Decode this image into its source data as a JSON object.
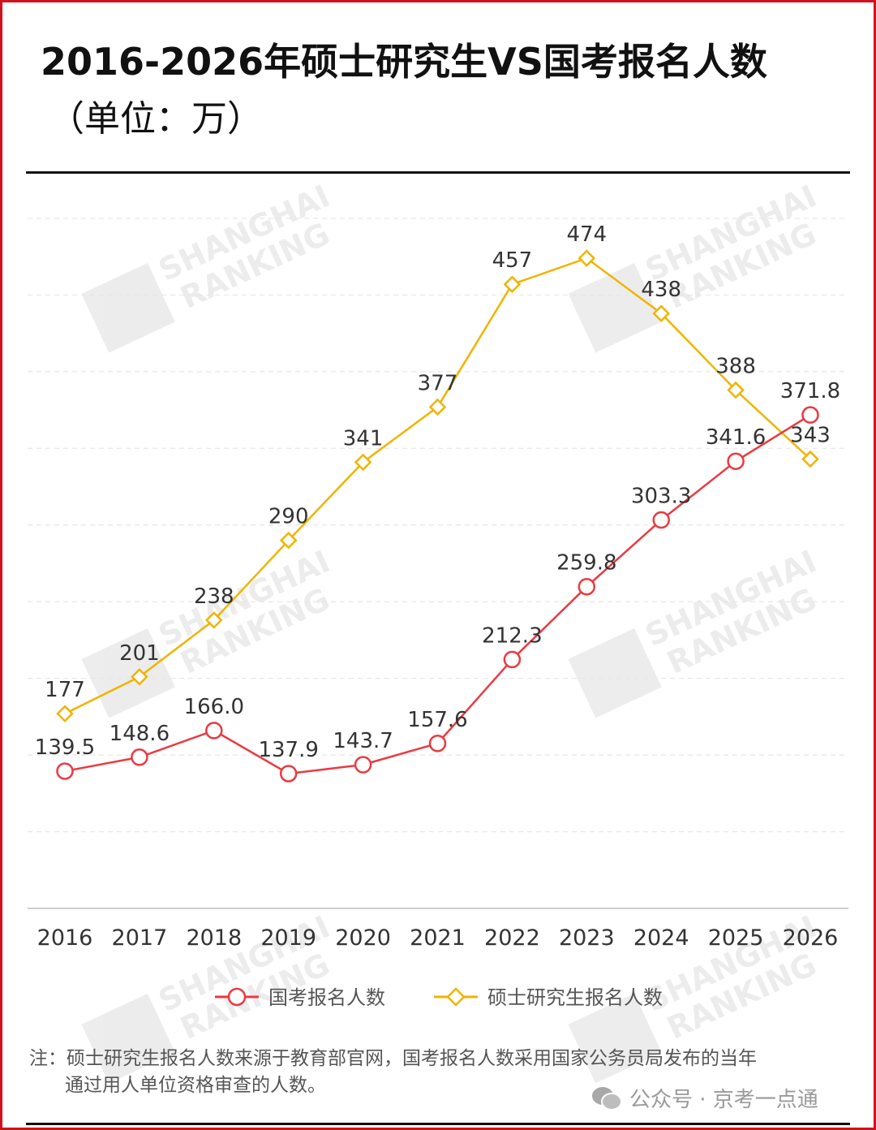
{
  "title": "2016-2026年硕士研究生VS国考报名人数",
  "subtitle": "（单位：万）",
  "note": {
    "line1": "注：硕士研究生报名人数来源于教育部官网，国考报名人数采用国家公务员局发布的当年",
    "line2": "通过用人单位资格审查的人数。"
  },
  "credit": "公众号 · 京考一点通",
  "watermark": "SHANGHAI RANKING 软科",
  "chart_data": {
    "type": "line",
    "title": "2016-2026年硕士研究生VS国考报名人数",
    "subtitle": "（单位：万）",
    "categories": [
      "2016",
      "2017",
      "2018",
      "2019",
      "2020",
      "2021",
      "2022",
      "2023",
      "2024",
      "2025",
      "2026"
    ],
    "ylim": [
      50,
      500
    ],
    "grid": true,
    "y_axis_labels": false,
    "legend_position": "bottom",
    "series": [
      {
        "name": "国考报名人数",
        "color": "#ea3a40",
        "marker": "circle",
        "values": [
          139.5,
          148.6,
          166.0,
          137.9,
          143.7,
          157.6,
          212.3,
          259.8,
          303.3,
          341.6,
          371.8
        ],
        "labels": [
          "139.5",
          "148.6",
          "166.0",
          "137.9",
          "143.7",
          "157.6",
          "212.3",
          "259.8",
          "303.3",
          "341.6",
          "371.8"
        ]
      },
      {
        "name": "硕士研究生报名人数",
        "color": "#f0b400",
        "marker": "diamond",
        "values": [
          177,
          201,
          238,
          290,
          341,
          377,
          457,
          474,
          438,
          388,
          343
        ],
        "labels": [
          "177",
          "201",
          "238",
          "290",
          "341",
          "377",
          "457",
          "474",
          "438",
          "388",
          "343"
        ]
      }
    ]
  }
}
